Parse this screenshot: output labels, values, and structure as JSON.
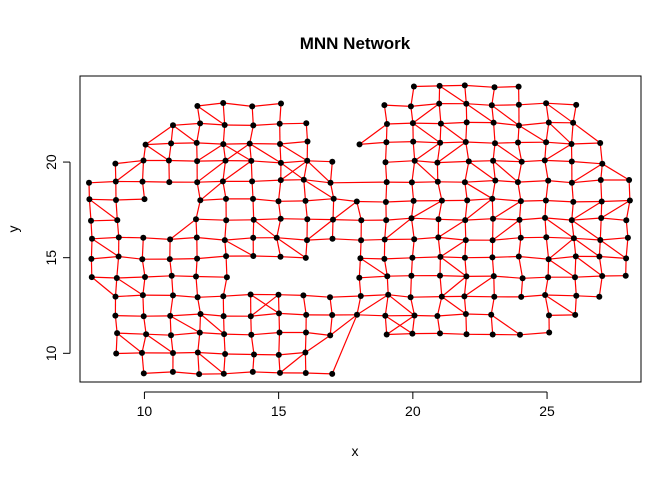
{
  "chart_data": {
    "type": "scatter",
    "title": "MNN Network",
    "xlabel": "x",
    "ylabel": "y",
    "xlim": [
      7.6,
      28.5
    ],
    "ylim": [
      8.5,
      24.5
    ],
    "xticks": [
      10,
      15,
      20,
      25
    ],
    "yticks": [
      10,
      15,
      20
    ],
    "grid": false,
    "legend": "none",
    "point_color": "#000000",
    "edge_color": "#ff0000",
    "nodes": {
      "left_region": {
        "x_values": [
          8,
          9,
          10,
          11,
          12,
          13,
          14,
          15,
          16,
          17
        ],
        "row_spans": [
          {
            "y": 9,
            "x_from": 10,
            "x_to": 17
          },
          {
            "y": 10,
            "x_from": 9,
            "x_to": 16
          },
          {
            "y": 11,
            "x_from": 9,
            "x_to": 17
          },
          {
            "y": 12,
            "x_from": 9,
            "x_to": 17
          },
          {
            "y": 13,
            "x_from": 9,
            "x_to": 17
          },
          {
            "y": 14,
            "x_from": 8,
            "x_to": 16
          },
          {
            "y": 15,
            "x_from": 8,
            "x_to": 17
          },
          {
            "y": 16,
            "x_from": 8,
            "x_to": 17
          },
          {
            "y": 17,
            "x_from": 8,
            "x_to": 17
          },
          {
            "y": 18,
            "x_from": 8,
            "x_to": 17
          },
          {
            "y": 19,
            "x_from": 8,
            "x_to": 17
          },
          {
            "y": 20,
            "x_from": 9,
            "x_to": 17
          },
          {
            "y": 21,
            "x_from": 10,
            "x_to": 16
          },
          {
            "y": 22,
            "x_from": 11,
            "x_to": 16
          },
          {
            "y": 23,
            "x_from": 12,
            "x_to": 15
          }
        ],
        "holes": [
          [
            10,
            17
          ],
          [
            11,
            17
          ],
          [
            11,
            18
          ],
          [
            14,
            14
          ],
          [
            15,
            14
          ],
          [
            16,
            14
          ],
          [
            17,
            14
          ],
          [
            17,
            15
          ]
        ]
      },
      "right_region": {
        "x_values": [
          18,
          19,
          20,
          21,
          22,
          23,
          24,
          25,
          26,
          27,
          28
        ],
        "row_spans": [
          {
            "y": 11,
            "x_from": 19,
            "x_to": 25
          },
          {
            "y": 12,
            "x_from": 18,
            "x_to": 23
          },
          {
            "y": 13,
            "x_from": 18,
            "x_to": 27
          },
          {
            "y": 14,
            "x_from": 18,
            "x_to": 28
          },
          {
            "y": 15,
            "x_from": 18,
            "x_to": 28
          },
          {
            "y": 16,
            "x_from": 18,
            "x_to": 28
          },
          {
            "y": 17,
            "x_from": 18,
            "x_to": 28
          },
          {
            "y": 18,
            "x_from": 18,
            "x_to": 28
          },
          {
            "y": 19,
            "x_from": 19,
            "x_to": 28
          },
          {
            "y": 20,
            "x_from": 19,
            "x_to": 27
          },
          {
            "y": 21,
            "x_from": 18,
            "x_to": 27
          },
          {
            "y": 22,
            "x_from": 19,
            "x_to": 26
          },
          {
            "y": 23,
            "x_from": 19,
            "x_to": 26
          },
          {
            "y": 24,
            "x_from": 20,
            "x_to": 24
          }
        ],
        "holes": [
          [
            24,
            12
          ],
          [
            25,
            12
          ],
          [
            18,
            21
          ]
        ],
        "extra": [
          [
            18,
            21
          ],
          [
            25,
            12
          ],
          [
            26,
            12
          ]
        ]
      }
    }
  }
}
